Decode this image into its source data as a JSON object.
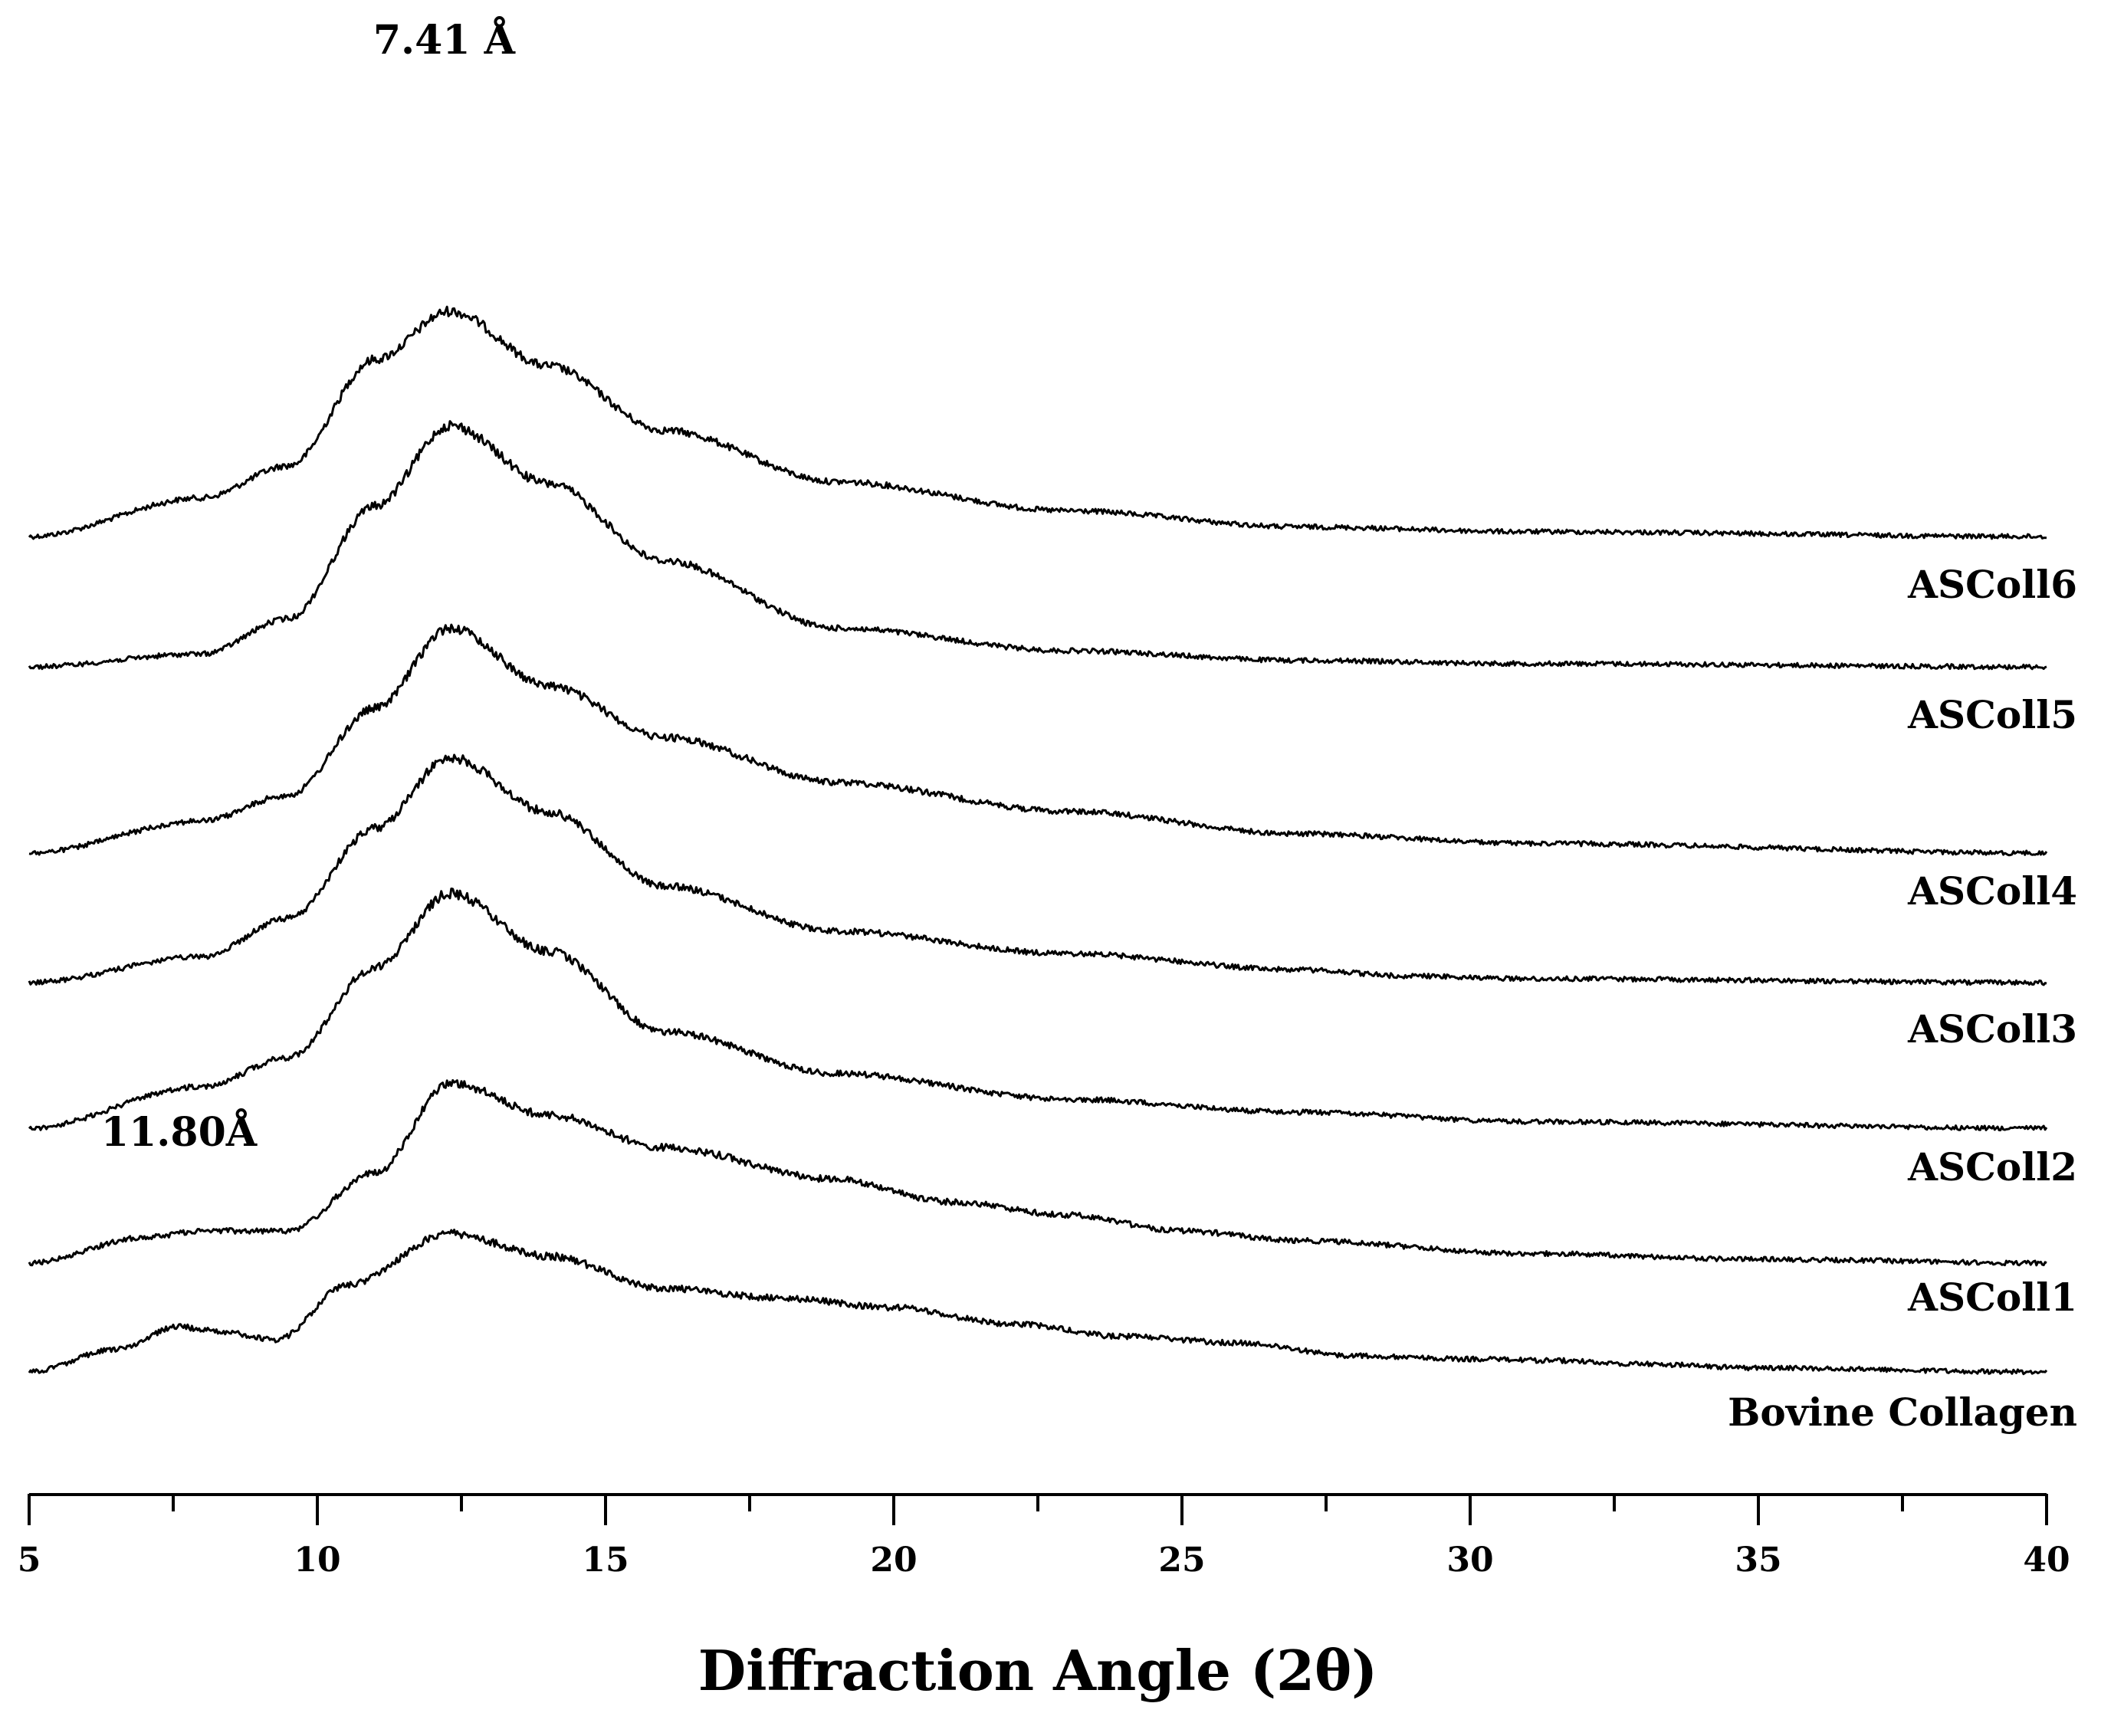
{
  "chart_data": {
    "type": "line",
    "title": "",
    "xlabel": "Diffraction Angle (2θ)",
    "ylabel": "",
    "xlim": [
      5,
      40
    ],
    "xticks": [
      "5",
      "10",
      "15",
      "20",
      "25",
      "30",
      "35",
      "40"
    ],
    "minor_ticks": true,
    "stacked_offset": true,
    "series": [
      {
        "name": "ASColl6",
        "points": [
          [
            5,
            0.0
          ],
          [
            8,
            0.12
          ],
          [
            9.5,
            0.22
          ],
          [
            11,
            0.55
          ],
          [
            12.3,
            0.7
          ],
          [
            14,
            0.53
          ],
          [
            16,
            0.33
          ],
          [
            19,
            0.17
          ],
          [
            23,
            0.08
          ],
          [
            27,
            0.03
          ],
          [
            31,
            0.015
          ],
          [
            40,
            0.0
          ]
        ]
      },
      {
        "name": "ASColl5",
        "points": [
          [
            5,
            0.0
          ],
          [
            8,
            0.04
          ],
          [
            9.5,
            0.15
          ],
          [
            11,
            0.5
          ],
          [
            12.3,
            0.75
          ],
          [
            14,
            0.57
          ],
          [
            16,
            0.33
          ],
          [
            19,
            0.12
          ],
          [
            23,
            0.05
          ],
          [
            27,
            0.02
          ],
          [
            31,
            0.01
          ],
          [
            40,
            0.0
          ]
        ]
      },
      {
        "name": "ASColl4",
        "points": [
          [
            5,
            0.0
          ],
          [
            8,
            0.1
          ],
          [
            9.5,
            0.18
          ],
          [
            11,
            0.45
          ],
          [
            12.3,
            0.7
          ],
          [
            14,
            0.52
          ],
          [
            16,
            0.36
          ],
          [
            19,
            0.22
          ],
          [
            23,
            0.13
          ],
          [
            27,
            0.06
          ],
          [
            31,
            0.03
          ],
          [
            40,
            0.0
          ]
        ]
      },
      {
        "name": "ASColl3",
        "points": [
          [
            5,
            0.0
          ],
          [
            8,
            0.08
          ],
          [
            9.5,
            0.2
          ],
          [
            11,
            0.48
          ],
          [
            12.3,
            0.7
          ],
          [
            14,
            0.53
          ],
          [
            16,
            0.3
          ],
          [
            19,
            0.16
          ],
          [
            23,
            0.09
          ],
          [
            27,
            0.04
          ],
          [
            29,
            0.02
          ],
          [
            31,
            0.012
          ],
          [
            40,
            0.0
          ]
        ]
      },
      {
        "name": "ASColl2",
        "points": [
          [
            5,
            0.0
          ],
          [
            8,
            0.13
          ],
          [
            9.5,
            0.22
          ],
          [
            11,
            0.5
          ],
          [
            12.3,
            0.73
          ],
          [
            14,
            0.55
          ],
          [
            16,
            0.3
          ],
          [
            19,
            0.17
          ],
          [
            23,
            0.09
          ],
          [
            27,
            0.05
          ],
          [
            31,
            0.02
          ],
          [
            40,
            0.0
          ]
        ]
      },
      {
        "name": "ASColl1",
        "points": [
          [
            5,
            0.0
          ],
          [
            7,
            0.08
          ],
          [
            8,
            0.1
          ],
          [
            9.5,
            0.1
          ],
          [
            11,
            0.28
          ],
          [
            12.3,
            0.56
          ],
          [
            14,
            0.46
          ],
          [
            16,
            0.36
          ],
          [
            19,
            0.26
          ],
          [
            21,
            0.19
          ],
          [
            23,
            0.15
          ],
          [
            25,
            0.1
          ],
          [
            27,
            0.07
          ],
          [
            31,
            0.03
          ],
          [
            35,
            0.012
          ],
          [
            40,
            0.0
          ]
        ]
      },
      {
        "name": "Bovine Collagen",
        "points": [
          [
            5,
            0.0
          ],
          [
            6.5,
            0.07
          ],
          [
            7.6,
            0.14
          ],
          [
            8.5,
            0.12
          ],
          [
            9.3,
            0.1
          ],
          [
            10.5,
            0.27
          ],
          [
            12.3,
            0.43
          ],
          [
            14,
            0.36
          ],
          [
            16,
            0.26
          ],
          [
            18,
            0.23
          ],
          [
            20,
            0.2
          ],
          [
            22,
            0.15
          ],
          [
            24,
            0.11
          ],
          [
            26,
            0.09
          ],
          [
            28,
            0.05
          ],
          [
            30,
            0.04
          ],
          [
            31.5,
            0.035
          ],
          [
            33,
            0.025
          ],
          [
            35,
            0.012
          ],
          [
            40,
            0.0
          ]
        ]
      }
    ],
    "annotations": [
      {
        "text": "7.41 Å",
        "x": 12.2,
        "target_series": "ASColl6"
      },
      {
        "text": "11.80Å",
        "x": 7.6,
        "target_series": "Bovine Collagen"
      }
    ]
  }
}
